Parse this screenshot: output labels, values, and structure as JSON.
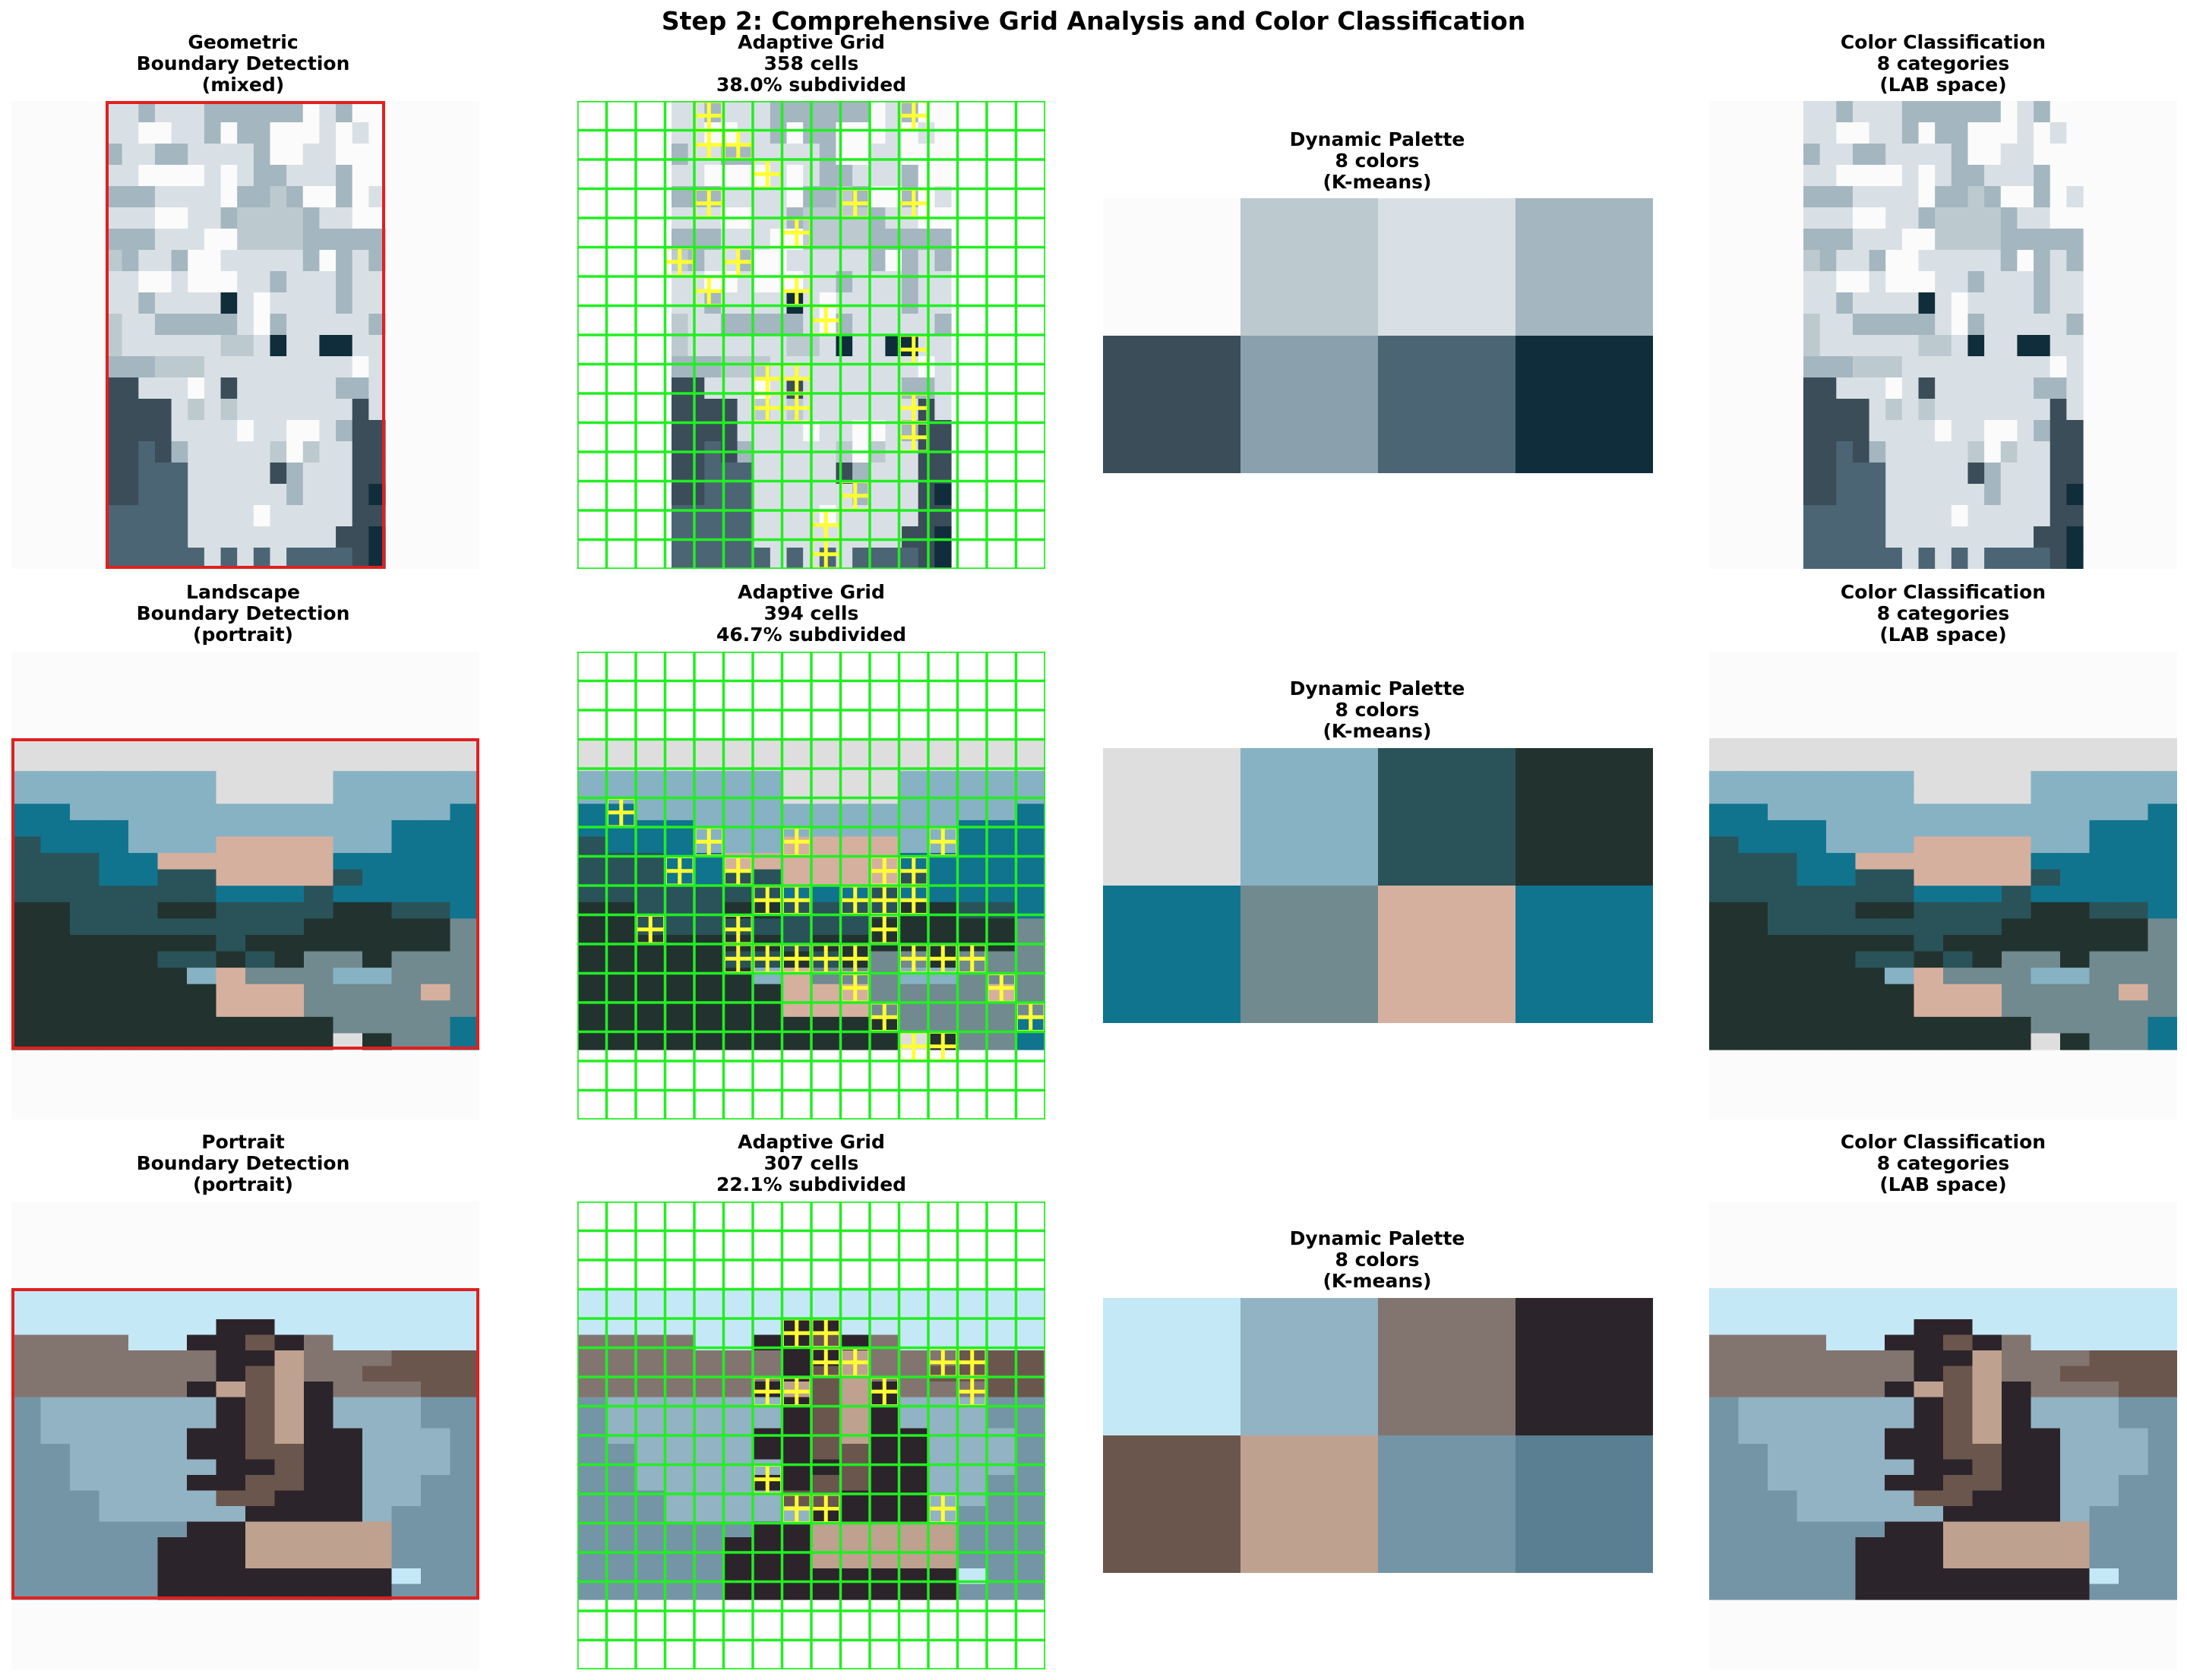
{
  "page": {
    "title": "Step 2: Comprehensive Grid Analysis and Color Classification"
  },
  "rows": [
    {
      "boundary_title": "Geometric\nBoundary Detection\n(mixed)",
      "grid_title": "Adaptive Grid\n358 cells\n38.0% subdivided",
      "palette_title": "Dynamic Palette\n8 colors\n(K-means)",
      "class_title": "Color Classification\n8 categories\n(LAB space)"
    },
    {
      "boundary_title": "Landscape\nBoundary Detection\n(portrait)",
      "grid_title": "Adaptive Grid\n394 cells\n46.7% subdivided",
      "palette_title": "Dynamic Palette\n8 colors\n(K-means)",
      "class_title": "Color Classification\n8 categories\n(LAB space)"
    },
    {
      "boundary_title": "Portrait\nBoundary Detection\n(portrait)",
      "grid_title": "Adaptive Grid\n307 cells\n22.1% subdivided",
      "palette_title": "Dynamic Palette\n8 colors\n(K-means)",
      "class_title": "Color Classification\n8 categories\n(LAB space)"
    }
  ],
  "chart_data": [
    {
      "type": "heatmap",
      "name": "geometric",
      "cells_total": 358,
      "subdivided_percent": 38.0,
      "palette": [
        "#fbfbfb",
        "#bccac f",
        "#d9e0e5",
        "#a4b6c0",
        "#3a4d59",
        "#8aa0ad",
        "#4b6575",
        "#0f2d3a"
      ],
      "class_grid": [
        "22322233333302300",
        "22002230330002020",
        "32233222230022000",
        "22000020233222300",
        "33322220331300302",
        "22200223111132200",
        "33322200111133333",
        "13223002222230323",
        "22002000223222322",
        "22322227202222322",
        "12233333203222223",
        "12222221127227722",
        "33311122222222202",
        "44222024222222332",
        "44442121222222242",
        "44442222022002344",
        "44643222221012244",
        "44666222224322244",
        "44666222222322247",
        "66666222202222244",
        "66666222222222447",
        "66666626262666647"
      ],
      "frame_color": "#e02020"
    },
    {
      "type": "heatmap",
      "name": "landscape",
      "cells_total": 394,
      "subdivided_percent": 46.7,
      "palette": [
        "#dedede",
        "#87b2c3",
        "#2a5359",
        "#22332f",
        "#10748f",
        "#718a8f",
        "#d6b09e",
        "#10748f"
      ],
      "class_grid": [
        "0000000000000000",
        "0000000000000000",
        "1111111000011111",
        "1111111000011111",
        "4411111111111114",
        "4444111111111444",
        "2444111666611444",
        "2224466666644444",
        "2224422666624444",
        "2222222444244444",
        "3322233222233224",
        "3322222222333335",
        "3333333233333335",
        "3333322323553555",
        "3333331655511555",
        "3333333666555565",
        "3333333666555555",
        "3333333333355554",
        "3333333333303554"
      ],
      "frame_color": "#e02020"
    },
    {
      "type": "heatmap",
      "name": "portrait",
      "cells_total": 307,
      "subdivided_percent": 22.1,
      "palette": [
        "#c5e8f6",
        "#92b3c3",
        "#827570",
        "#2c242b",
        "#6b564e",
        "#bfa18f",
        "#7495a6",
        "#5a7f92"
      ],
      "class_grid": [
        "0000000000000000",
        "0000000000000000",
        "0000000330000000",
        "2222003343200000",
        "2222222335222444",
        "2222222345224444",
        "2222223545322244",
        "6111111345311166",
        "6111111345311166",
        "6111113345331116",
        "6611113344331116",
        "6611111334331116",
        "6611113344331166",
        "6661111443331166",
        "6661111133331666",
        "6666663355555666",
        "6666633355555666",
        "6666633355555666",
        "6666633333333066",
        "6666633333333666"
      ],
      "frame_color": "#e02020"
    }
  ]
}
